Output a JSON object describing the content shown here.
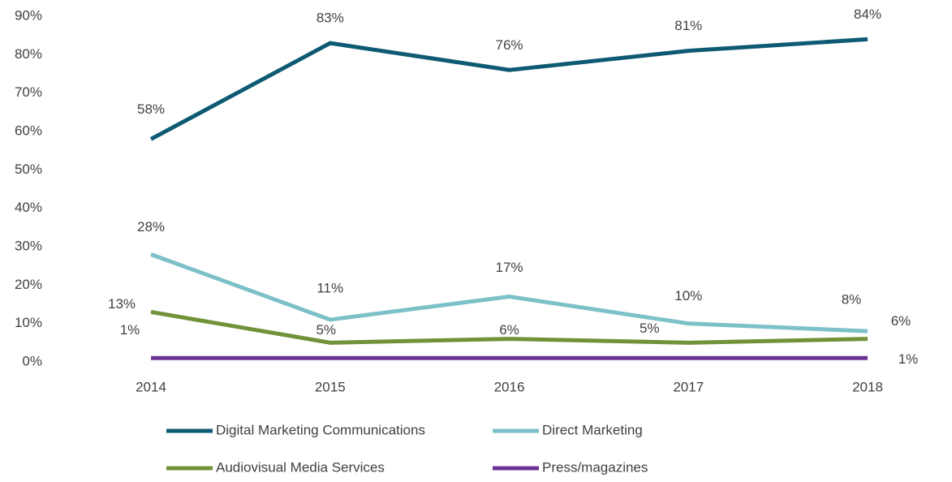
{
  "chart_data": {
    "type": "line",
    "categories": [
      "2014",
      "2015",
      "2016",
      "2017",
      "2018"
    ],
    "series": [
      {
        "name": "Digital Marketing Communications",
        "color": "#0e5a73",
        "values": [
          58,
          83,
          76,
          81,
          84
        ],
        "value_labels": [
          "58%",
          "83%",
          "76%",
          "81%",
          "84%"
        ]
      },
      {
        "name": "Direct Marketing",
        "color": "#7dc1c8",
        "values": [
          28,
          11,
          17,
          10,
          8
        ],
        "value_labels": [
          "28%",
          "11%",
          "17%",
          "10%",
          "8%"
        ]
      },
      {
        "name": "Audiovisual Media Services",
        "color": "#71923a",
        "values": [
          13,
          5,
          6,
          5,
          6
        ],
        "value_labels": [
          "13%",
          "5%",
          "6%",
          "5%",
          "6%"
        ]
      },
      {
        "name": "Press/magazines",
        "color": "#6b3494",
        "values": [
          1,
          1,
          1,
          1,
          1
        ],
        "value_labels": [
          "1%",
          null,
          null,
          null,
          "1%"
        ]
      }
    ],
    "ylim": [
      0,
      90
    ],
    "yticks": [
      {
        "value": 0,
        "label": "0%"
      },
      {
        "value": 10,
        "label": "10%"
      },
      {
        "value": 20,
        "label": "20%"
      },
      {
        "value": 30,
        "label": "30%"
      },
      {
        "value": 40,
        "label": "40%"
      },
      {
        "value": 50,
        "label": "50%"
      },
      {
        "value": 60,
        "label": "60%"
      },
      {
        "value": 70,
        "label": "70%"
      },
      {
        "value": 80,
        "label": "80%"
      },
      {
        "value": 90,
        "label": "90%"
      }
    ],
    "grid": false
  }
}
